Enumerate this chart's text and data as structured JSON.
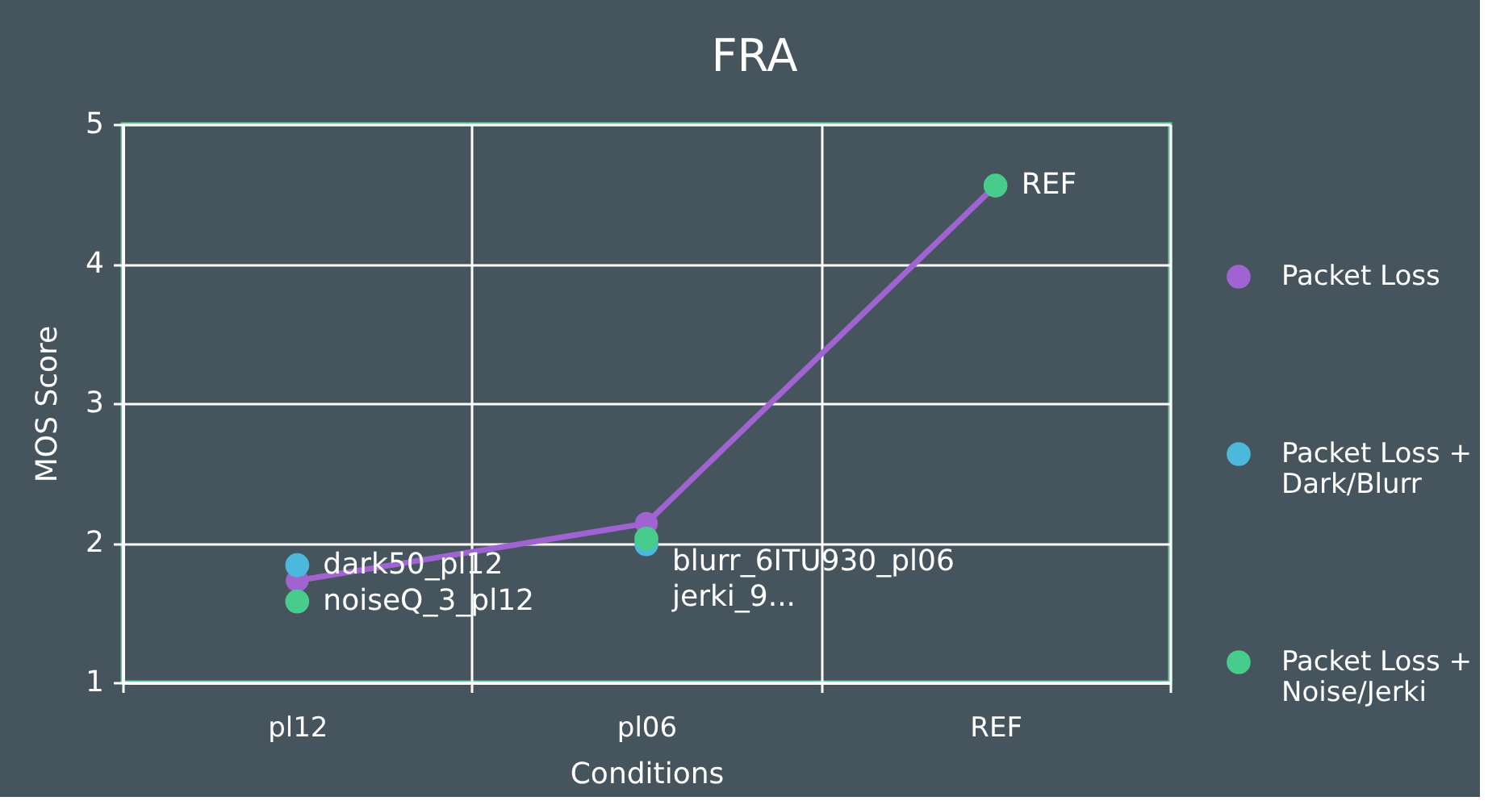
{
  "chart_data": {
    "type": "line",
    "title": "FRA",
    "xlabel": "Conditions",
    "ylabel": "MOS Score",
    "categories": [
      "pl12",
      "pl06",
      "REF"
    ],
    "series": [
      {
        "name": "Packet Loss",
        "color": "#a064d2",
        "values": [
          1.73,
          2.14,
          4.56
        ]
      },
      {
        "name": "Packet Loss + Dark/Blurr",
        "type": "scatter",
        "color": "#4bb8dc",
        "values": [
          1.84,
          1.99,
          null
        ],
        "value_labels": [
          "dark50_pl12",
          "blurr_6ITU930_pl06",
          null
        ]
      },
      {
        "name": "Packet Loss + Noise/Jerki",
        "type": "scatter",
        "color": "#48cc8c",
        "values": [
          1.58,
          2.03,
          4.56
        ],
        "value_labels": [
          "noiseQ_3_pl12",
          "jerki_9...",
          "REF"
        ]
      }
    ],
    "ylim": [
      1,
      5
    ],
    "yticks": [
      1,
      2,
      3,
      4,
      5
    ],
    "grid": true,
    "legend": "right",
    "marker": "circle"
  }
}
